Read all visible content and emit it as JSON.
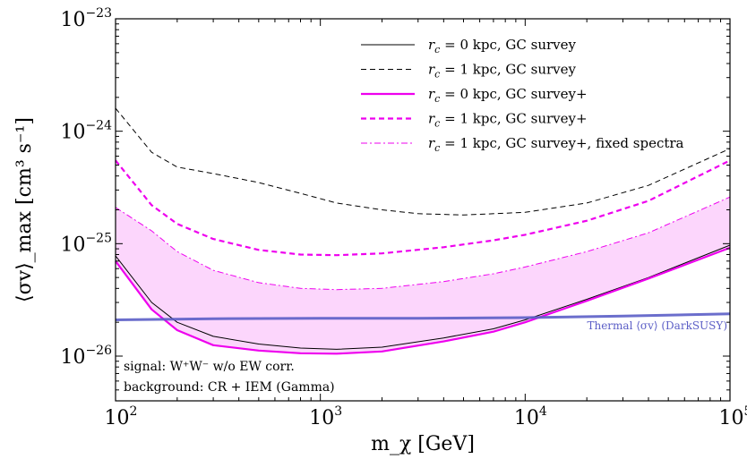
{
  "chart_data": {
    "type": "line",
    "title": "",
    "xlabel": "m_χ [GeV]",
    "ylabel": "⟨σv⟩_max [cm³ s⁻¹]",
    "xscale": "log",
    "yscale": "log",
    "xlim": [
      100,
      100000
    ],
    "ylim": [
      4e-27,
      1e-23
    ],
    "x_ticks": [
      {
        "value": 100,
        "base": "10",
        "exp": "2"
      },
      {
        "value": 1000,
        "base": "10",
        "exp": "3"
      },
      {
        "value": 10000,
        "base": "10",
        "exp": "4"
      },
      {
        "value": 100000,
        "base": "10",
        "exp": "5"
      }
    ],
    "y_ticks": [
      {
        "value": 1e-26,
        "base": "10",
        "exp": "−26"
      },
      {
        "value": 1e-25,
        "base": "10",
        "exp": "−25"
      },
      {
        "value": 1e-24,
        "base": "10",
        "exp": "−24"
      },
      {
        "value": 1e-23,
        "base": "10",
        "exp": "−23"
      }
    ],
    "grid": false,
    "legend_position": "top-right",
    "series": [
      {
        "name": "r_c = 0 kpc, GC survey",
        "color": "#000000",
        "style": "solid",
        "width": 1,
        "x": [
          100,
          150,
          200,
          300,
          500,
          800,
          1200,
          2000,
          4000,
          7000,
          10000,
          20000,
          40000,
          100000
        ],
        "y": [
          7.8e-26,
          3e-26,
          2e-26,
          1.5e-26,
          1.28e-26,
          1.18e-26,
          1.15e-26,
          1.2e-26,
          1.45e-26,
          1.75e-26,
          2.1e-26,
          3.2e-26,
          5e-26,
          9.7e-26
        ]
      },
      {
        "name": "r_c = 1 kpc, GC survey",
        "color": "#000000",
        "style": "dashed",
        "width": 1,
        "x": [
          100,
          150,
          200,
          300,
          500,
          800,
          1200,
          2000,
          3000,
          5000,
          10000,
          20000,
          40000,
          100000
        ],
        "y": [
          1.6e-24,
          6.5e-25,
          4.8e-25,
          4.2e-25,
          3.5e-25,
          2.8e-25,
          2.3e-25,
          2e-25,
          1.85e-25,
          1.8e-25,
          1.9e-25,
          2.3e-25,
          3.3e-25,
          7e-25
        ]
      },
      {
        "name": "r_c = 0 kpc, GC survey+",
        "color": "#ee00ee",
        "style": "solid",
        "width": 2.2,
        "x": [
          100,
          150,
          200,
          300,
          500,
          800,
          1200,
          2000,
          4000,
          7000,
          10000,
          20000,
          40000,
          100000
        ],
        "y": [
          7e-26,
          2.6e-26,
          1.7e-26,
          1.25e-26,
          1.12e-26,
          1.06e-26,
          1.05e-26,
          1.1e-26,
          1.35e-26,
          1.65e-26,
          2e-26,
          3.1e-26,
          4.9e-26,
          9.2e-26
        ]
      },
      {
        "name": "r_c = 1 kpc, GC survey+",
        "color": "#ee00ee",
        "style": "dashed",
        "width": 2.2,
        "x": [
          100,
          150,
          200,
          300,
          500,
          800,
          1200,
          2000,
          4000,
          7000,
          10000,
          20000,
          40000,
          100000
        ],
        "y": [
          5.5e-25,
          2.2e-25,
          1.5e-25,
          1.1e-25,
          8.8e-26,
          8e-26,
          7.9e-26,
          8.2e-26,
          9.3e-26,
          1.07e-25,
          1.2e-25,
          1.6e-25,
          2.4e-25,
          5.5e-25
        ]
      },
      {
        "name": "r_c = 1 kpc, GC survey+, fixed spectra",
        "color": "#ee00ee",
        "style": "dashdot",
        "width": 1,
        "x": [
          100,
          150,
          200,
          300,
          500,
          800,
          1200,
          2000,
          4000,
          7000,
          10000,
          20000,
          40000,
          100000
        ],
        "y": [
          2.1e-25,
          1.3e-25,
          8.5e-26,
          5.8e-26,
          4.5e-26,
          4e-26,
          3.9e-26,
          4e-26,
          4.6e-26,
          5.4e-26,
          6.2e-26,
          8.5e-26,
          1.25e-25,
          2.6e-25
        ]
      },
      {
        "name": "Thermal ⟨σv⟩ (DarkSUSY)",
        "color": "#5b5ec6",
        "style": "solid",
        "width": 3,
        "x": [
          100,
          300,
          1000,
          3000,
          10000,
          30000,
          100000
        ],
        "y": [
          2.1e-26,
          2.15e-26,
          2.17e-26,
          2.17e-26,
          2.2e-26,
          2.27e-26,
          2.38e-26
        ]
      }
    ],
    "band": {
      "lower_series_index": 2,
      "upper_series_index": 4,
      "color": "#ee00ee",
      "opacity": 0.16
    },
    "legend": [
      {
        "prefix": "r",
        "sub": "c",
        "rest": " = 0 kpc, GC survey",
        "series_index": 0
      },
      {
        "prefix": "r",
        "sub": "c",
        "rest": " = 1 kpc, GC survey",
        "series_index": 1
      },
      {
        "prefix": "r",
        "sub": "c",
        "rest": " = 0 kpc, GC survey+",
        "series_index": 2
      },
      {
        "prefix": "r",
        "sub": "c",
        "rest": " = 1 kpc, GC survey+",
        "series_index": 3
      },
      {
        "prefix": "r",
        "sub": "c",
        "rest": " = 1 kpc, GC survey+, fixed spectra",
        "series_index": 4
      }
    ],
    "annotations": {
      "thermal_label": "Thermal ⟨σv⟩ (DarkSUSY)",
      "signal": "signal: W⁺W⁻ w/o EW corr.",
      "background": "background: CR + IEM (Gamma)"
    }
  }
}
